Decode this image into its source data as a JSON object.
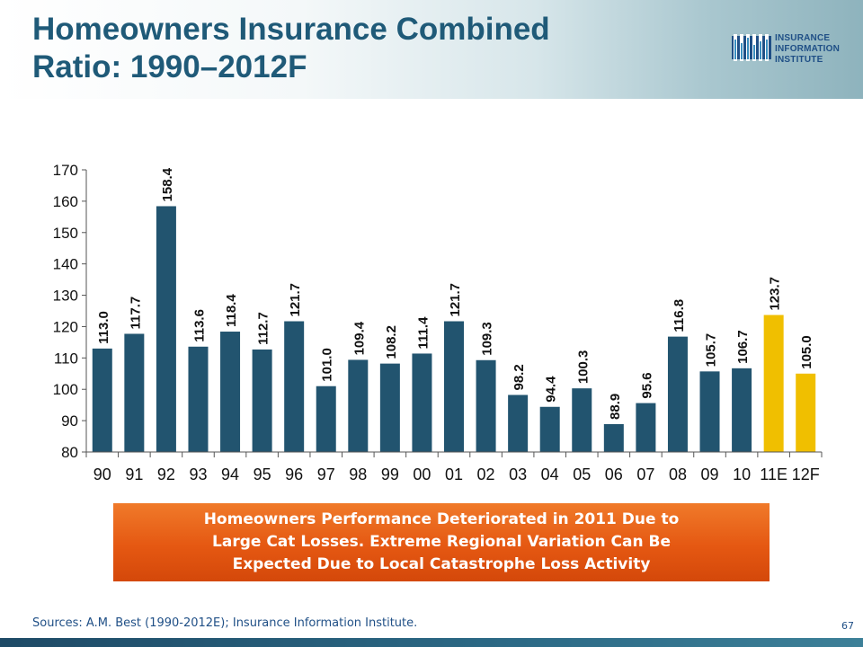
{
  "slide": {
    "title_line1": "Homeowners Insurance Combined",
    "title_line2": "Ratio: 1990–2012F",
    "logo": {
      "line1": "INSURANCE",
      "line2": "INFORMATION",
      "line3": "INSTITUTE"
    },
    "callout": {
      "line1": "Homeowners Performance Deteriorated in 2011 Due to",
      "line2": "Large Cat Losses.  Extreme Regional Variation Can Be",
      "line3": "Expected Due to Local Catastrophe Loss Activity"
    },
    "source": "Sources: A.M. Best (1990-2012E); Insurance Information Institute.",
    "page_number": "67"
  },
  "colors": {
    "title": "#1f5a78",
    "bar_actual": "#22546f",
    "bar_estimate": "#f0bf00",
    "callout": "#e55812",
    "text": "#1f4f86"
  },
  "chart_data": {
    "type": "bar",
    "categories": [
      "90",
      "91",
      "92",
      "93",
      "94",
      "95",
      "96",
      "97",
      "98",
      "99",
      "00",
      "01",
      "02",
      "03",
      "04",
      "05",
      "06",
      "07",
      "08",
      "09",
      "10",
      "11E",
      "12F"
    ],
    "values": [
      113.0,
      117.7,
      158.4,
      113.6,
      118.4,
      112.7,
      121.7,
      101.0,
      109.4,
      108.2,
      111.4,
      121.7,
      109.3,
      98.2,
      94.4,
      100.3,
      88.9,
      95.6,
      116.8,
      105.7,
      106.7,
      123.7,
      105.0
    ],
    "data_labels": [
      "113.0",
      "117.7",
      "158.4",
      "113.6",
      "118.4",
      "112.7",
      "121.7",
      "101.0",
      "109.4",
      "108.2",
      "111.4",
      "121.7",
      "109.3",
      "98.2",
      "94.4",
      "100.3",
      "88.9",
      "95.6",
      "116.8",
      "105.7",
      "106.7",
      "123.7",
      "105.0"
    ],
    "highlighted": [
      false,
      false,
      false,
      false,
      false,
      false,
      false,
      false,
      false,
      false,
      false,
      false,
      false,
      false,
      false,
      false,
      false,
      false,
      false,
      false,
      false,
      true,
      true
    ],
    "yticks": [
      80,
      90,
      100,
      110,
      120,
      130,
      140,
      150,
      160,
      170
    ],
    "ylim": [
      80,
      170
    ],
    "grid": false,
    "legend": "none"
  }
}
